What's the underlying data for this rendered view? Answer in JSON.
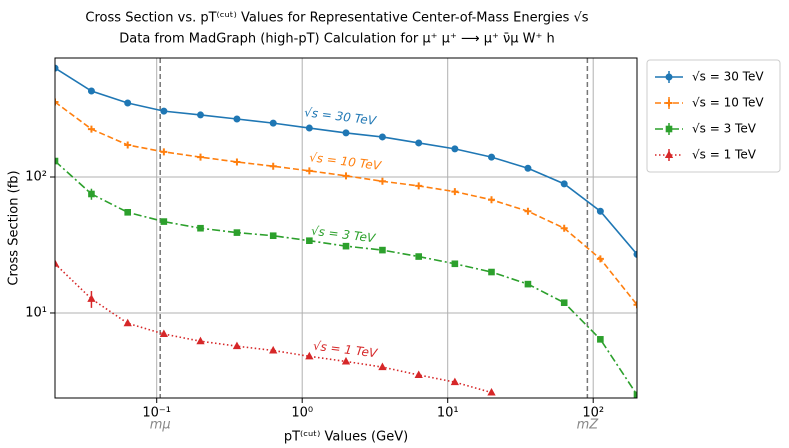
{
  "chart_data": {
    "type": "line",
    "title": "Cross Section  vs.  pT⁽ᶜᵘᵗ⁾ Values for Representative Center-of-Mass Energies √s",
    "subtitle": "Data from MadGraph (high-pT) Calculation for  μ⁺ μ⁺ ⟶ μ⁺ ν̄μ W⁺ h",
    "xlabel": "pT⁽ᶜᵘᵗ⁾ Values (GeV)",
    "ylabel": "Cross Section (fb)",
    "xscale": "log",
    "yscale": "log",
    "grid": true,
    "legend": "upper right outside",
    "x": [
      0.02,
      0.0356,
      0.0632,
      0.112,
      0.2,
      0.356,
      0.632,
      1.12,
      2,
      3.56,
      6.32,
      11.2,
      20,
      35.6,
      63.2,
      112,
      200
    ],
    "series": [
      {
        "name": "√s  = 30 TeV",
        "color": "#1f77b4",
        "marker": "circle",
        "linestyle": "solid",
        "values": [
          632,
          429,
          350,
          305,
          286,
          267,
          249,
          229,
          211,
          197,
          178,
          161,
          140,
          116,
          89,
          56,
          27
        ],
        "errors": [
          null,
          15,
          null,
          null,
          null,
          null,
          null,
          null,
          null,
          null,
          null,
          null,
          null,
          null,
          null,
          null,
          null
        ]
      },
      {
        "name": "√s  = 10 TeV",
        "color": "#ff7f0e",
        "marker": "plus",
        "linestyle": "dashed",
        "values": [
          356,
          225,
          172,
          153,
          140,
          129,
          120,
          111,
          102,
          93,
          86,
          78,
          68,
          56,
          42,
          25,
          11.5
        ],
        "errors": [
          null,
          10,
          null,
          null,
          null,
          null,
          null,
          null,
          null,
          null,
          null,
          null,
          null,
          null,
          null,
          null,
          null
        ]
      },
      {
        "name": "√s  = 3 TeV",
        "color": "#2ca02c",
        "marker": "square",
        "linestyle": "dashdot",
        "values": [
          131,
          75,
          55,
          47,
          42,
          39,
          37,
          34,
          31,
          29,
          26,
          23,
          20,
          16.3,
          11.9,
          6.4,
          2.5
        ],
        "errors": [
          null,
          7,
          null,
          null,
          null,
          null,
          null,
          null,
          null,
          null,
          null,
          null,
          null,
          null,
          null,
          null,
          null
        ]
      },
      {
        "name": "√s  = 1 TeV",
        "color": "#d62728",
        "marker": "triangle",
        "linestyle": "dotted",
        "values": [
          23,
          12.7,
          8.4,
          7.0,
          6.2,
          5.7,
          5.3,
          4.8,
          4.4,
          4.0,
          3.5,
          3.1,
          2.6,
          null,
          null,
          null,
          null
        ],
        "errors": [
          null,
          1.8,
          null,
          null,
          null,
          null,
          null,
          null,
          null,
          null,
          null,
          null,
          null,
          null,
          null,
          null,
          null
        ]
      }
    ],
    "annotations": [
      "√s  = 30 TeV",
      "√s  = 10 TeV",
      "√s  = 3 TeV",
      "√s  = 1 TeV"
    ],
    "reference_lines": [
      {
        "x": 0.1057,
        "label": "mμ"
      },
      {
        "x": 91.19,
        "label": "mZ"
      }
    ],
    "xlim": [
      0.02,
      200
    ],
    "ylim": [
      2.37,
      750
    ],
    "xticks": [
      {
        "value": 0.1,
        "label": "10⁻¹"
      },
      {
        "value": 1,
        "label": "10⁰"
      },
      {
        "value": 10,
        "label": "10¹"
      },
      {
        "value": 100,
        "label": "10²"
      }
    ],
    "yticks": [
      {
        "value": 10,
        "label": "10¹"
      },
      {
        "value": 100,
        "label": "10²"
      }
    ]
  }
}
